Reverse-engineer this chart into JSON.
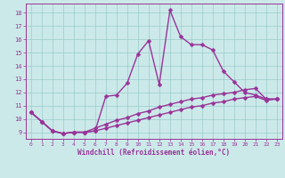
{
  "xlabel": "Windchill (Refroidissement éolien,°C)",
  "xlim": [
    -0.5,
    23.5
  ],
  "ylim": [
    8.5,
    18.7
  ],
  "yticks": [
    9,
    10,
    11,
    12,
    13,
    14,
    15,
    16,
    17,
    18
  ],
  "xticks": [
    0,
    1,
    2,
    3,
    4,
    5,
    6,
    7,
    8,
    9,
    10,
    11,
    12,
    13,
    14,
    15,
    16,
    17,
    18,
    19,
    20,
    21,
    22,
    23
  ],
  "bg_color": "#cce9e9",
  "grid_color": "#99cccc",
  "line_color": "#993399",
  "line_width": 1.0,
  "marker": "D",
  "marker_size": 2.5,
  "curve1_x": [
    0,
    1,
    2,
    3,
    4,
    5,
    6,
    7,
    8,
    9,
    10,
    11,
    12,
    13,
    14,
    15,
    16,
    17,
    18,
    19,
    20,
    21,
    22,
    23
  ],
  "curve1_y": [
    10.5,
    9.8,
    9.1,
    8.9,
    9.0,
    9.0,
    9.1,
    11.7,
    11.8,
    12.7,
    14.9,
    15.9,
    12.6,
    18.2,
    16.2,
    15.6,
    15.6,
    15.2,
    13.6,
    12.8,
    12.0,
    11.8,
    11.5,
    11.5
  ],
  "curve2_x": [
    0,
    1,
    2,
    3,
    4,
    5,
    6,
    7,
    8,
    9,
    10,
    11,
    12,
    13,
    14,
    15,
    16,
    17,
    18,
    19,
    20,
    21,
    22,
    23
  ],
  "curve2_y": [
    10.5,
    9.8,
    9.1,
    8.9,
    9.0,
    9.0,
    9.3,
    9.6,
    9.9,
    10.1,
    10.4,
    10.6,
    10.9,
    11.1,
    11.3,
    11.5,
    11.6,
    11.8,
    11.9,
    12.0,
    12.2,
    12.3,
    11.5,
    11.5
  ],
  "curve3_x": [
    0,
    1,
    2,
    3,
    4,
    5,
    6,
    7,
    8,
    9,
    10,
    11,
    12,
    13,
    14,
    15,
    16,
    17,
    18,
    19,
    20,
    21,
    22,
    23
  ],
  "curve3_y": [
    10.5,
    9.8,
    9.1,
    8.9,
    9.0,
    9.0,
    9.1,
    9.3,
    9.5,
    9.7,
    9.9,
    10.1,
    10.3,
    10.5,
    10.7,
    10.9,
    11.0,
    11.2,
    11.3,
    11.5,
    11.6,
    11.7,
    11.4,
    11.5
  ]
}
